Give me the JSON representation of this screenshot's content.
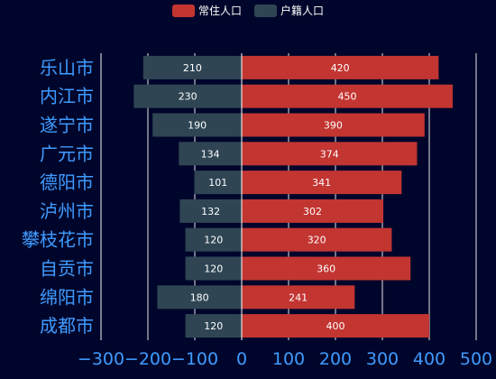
{
  "colors": {
    "background": "#00062b",
    "resident": "#c23531",
    "registered": "#2f4554",
    "axis_label": "#3f9bff",
    "gridline": "#ffffff",
    "bar_label": "#ffffff"
  },
  "chart_data": {
    "type": "bar",
    "orientation": "horizontal",
    "stacked": true,
    "categories": [
      "成都市",
      "绵阳市",
      "自贡市",
      "攀枝花市",
      "泸州市",
      "德阳市",
      "广元市",
      "遂宁市",
      "内江市",
      "乐山市"
    ],
    "series": [
      {
        "name": "户籍人口",
        "values": [
          -120,
          -180,
          -120,
          -120,
          -132,
          -101,
          -134,
          -190,
          -230,
          -210
        ],
        "labels": [
          "120",
          "180",
          "120",
          "120",
          "132",
          "101",
          "134",
          "190",
          "230",
          "210"
        ]
      },
      {
        "name": "常住人口",
        "values": [
          400,
          241,
          360,
          320,
          302,
          341,
          374,
          390,
          450,
          420
        ],
        "labels": [
          "400",
          "241",
          "360",
          "320",
          "302",
          "341",
          "374",
          "390",
          "450",
          "420"
        ]
      }
    ],
    "xlim": [
      -300,
      500
    ],
    "xticks": [
      -300,
      -200,
      -100,
      0,
      100,
      200,
      300,
      400,
      500
    ],
    "xtick_labels": [
      "−300",
      "−200",
      "−100",
      "0",
      "100",
      "200",
      "300",
      "400",
      "500"
    ],
    "grid": true,
    "legend_position": "top-center",
    "title": "",
    "xlabel": "",
    "ylabel": ""
  }
}
